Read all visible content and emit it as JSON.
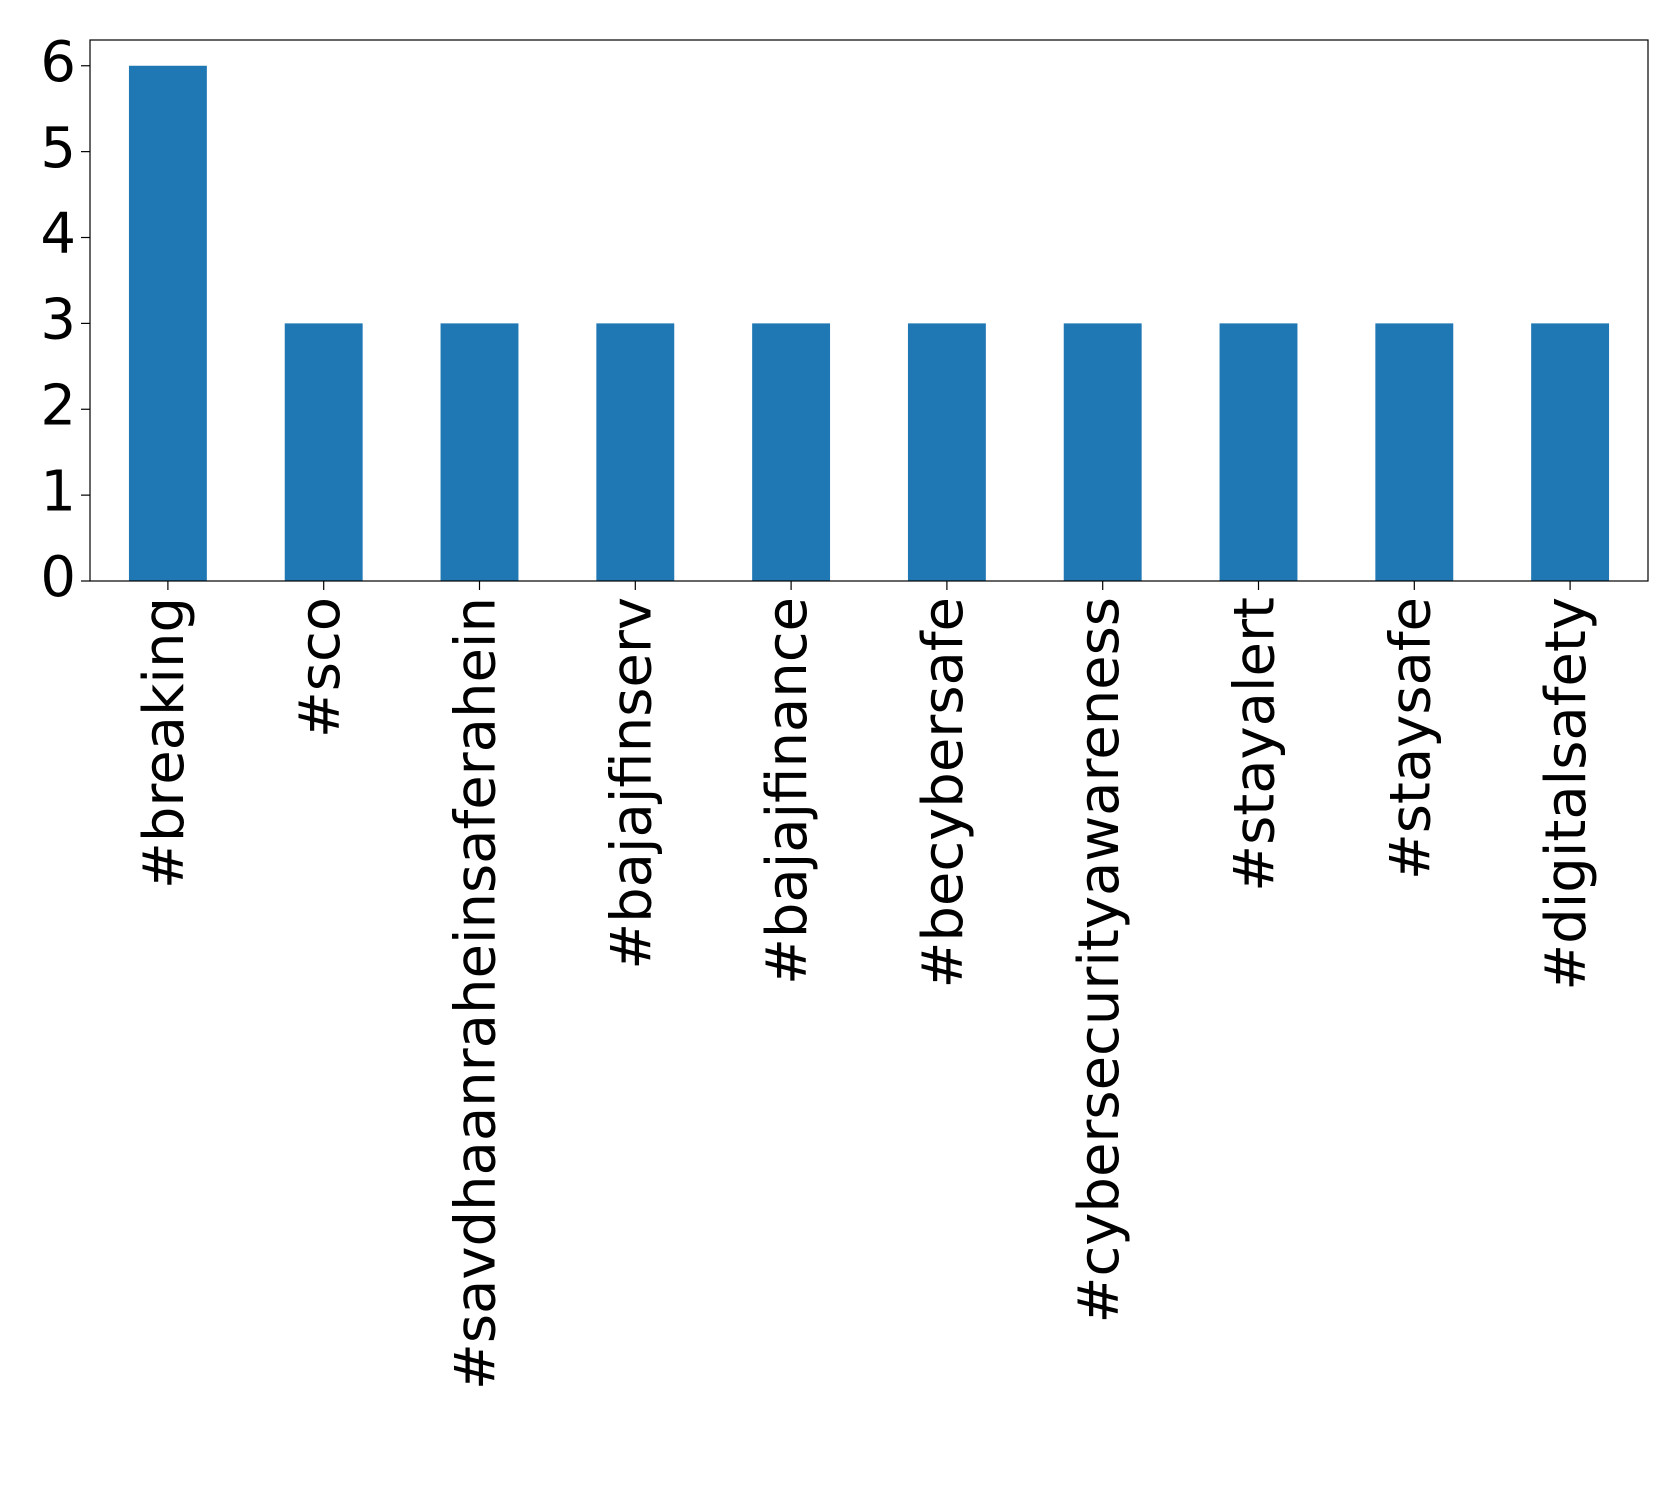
{
  "chart_data": {
    "type": "bar",
    "categories": [
      "#breaking",
      "#sco",
      "#savdhaanraheinsaferahein",
      "#bajajfinserv",
      "#bajajfinance",
      "#becybersafe",
      "#cybersecurityawareness",
      "#stayalert",
      "#staysafe",
      "#digitalsafety"
    ],
    "values": [
      6,
      3,
      3,
      3,
      3,
      3,
      3,
      3,
      3,
      3
    ],
    "color": "#1f77b4",
    "ylim": [
      0,
      6.3
    ],
    "yticks": [
      0,
      1,
      2,
      3,
      4,
      5,
      6
    ],
    "grid": false
  }
}
